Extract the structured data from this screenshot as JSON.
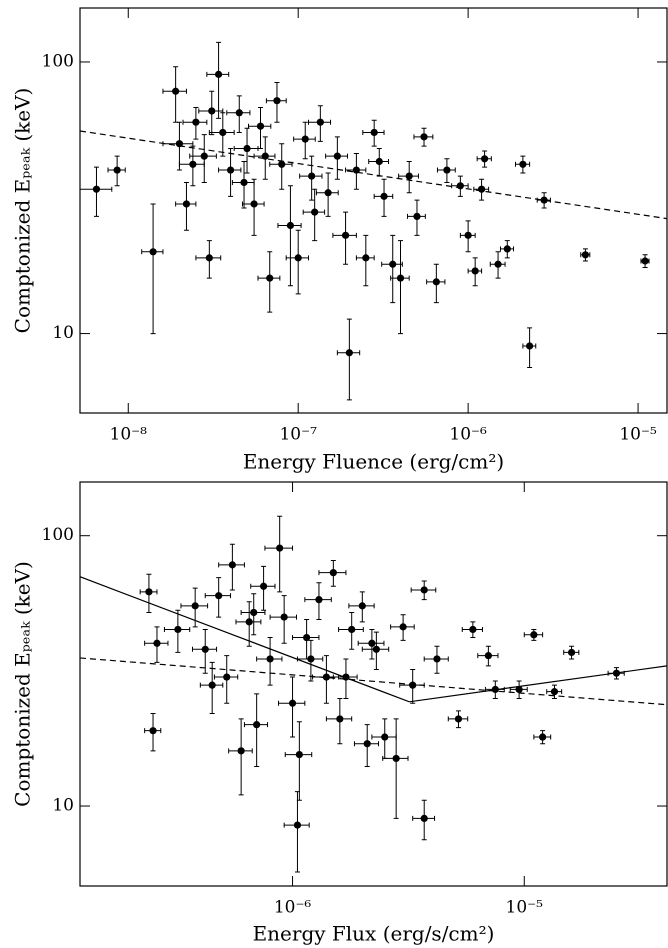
{
  "chart_data": [
    {
      "type": "scatter",
      "xlabel": "Energy Fluence (erg/cm²)",
      "ylabel": "Comptonized Eₚₑₐₖ (keV)",
      "log_x": true,
      "log_y": true,
      "color": "#000000",
      "xlim": [
        5.2e-09,
        1.48e-05
      ],
      "ylim": [
        5.1,
        158
      ],
      "xticks": [
        {
          "value": 1e-08,
          "label": "10⁻⁸"
        },
        {
          "value": 1e-07,
          "label": "10⁻⁷"
        },
        {
          "value": 1e-06,
          "label": "10⁻⁶"
        },
        {
          "value": 1e-05,
          "label": "10⁻⁵"
        }
      ],
      "yticks": [
        10,
        100
      ],
      "series": [
        {
          "x": [
            6.5e-09,
            8.6e-09,
            1.4e-08,
            1.9e-08,
            2e-08,
            2.2e-08,
            2.5e-08,
            2.8e-08,
            3e-08,
            3.4e-08,
            3.6e-08,
            4e-08,
            4.5e-08,
            5e-08,
            5.5e-08,
            6e-08,
            6.8e-08,
            7.5e-08,
            8e-08,
            9e-08,
            1e-07,
            1.1e-07,
            1.2e-07,
            1.35e-07,
            1.5e-07,
            1.7e-07,
            1.9e-07,
            2e-07,
            2.2e-07,
            2.5e-07,
            2.8e-07,
            3.2e-07,
            3.6e-07,
            4e-07,
            4.5e-07,
            5.5e-07,
            6.5e-07,
            7.5e-07,
            9e-07,
            1e-06,
            1.1e-06,
            1.25e-06,
            1.5e-06,
            1.7e-06,
            2.1e-06,
            2.3e-06,
            2.8e-06,
            4.9e-06,
            1.1e-05,
            2.4e-08,
            3.1e-08,
            4.8e-08,
            6.4e-08,
            1.25e-07,
            3e-07,
            1.2e-06,
            5e-07
          ],
          "y": [
            34,
            40,
            20,
            78,
            50,
            30,
            60,
            45,
            19,
            90,
            55,
            40,
            65,
            48,
            30,
            58,
            16,
            72,
            42,
            25,
            19,
            52,
            38,
            60,
            33,
            45,
            23,
            8.5,
            40,
            19,
            55,
            32,
            18,
            16,
            38,
            53,
            15.5,
            40,
            35,
            23,
            17,
            44,
            18,
            20.5,
            42,
            9,
            31,
            19.5,
            18.5,
            42,
            66,
            36,
            45,
            28,
            43,
            34,
            27
          ],
          "xerr": [
            1.5e-09,
            1e-09,
            2e-09,
            3e-09,
            4e-09,
            3e-09,
            4e-09,
            5e-09,
            5e-09,
            5e-09,
            6e-09,
            6e-09,
            7e-09,
            8e-09,
            8e-09,
            9e-09,
            1e-08,
            1e-08,
            1.2e-08,
            1.4e-08,
            1.5e-08,
            1.6e-08,
            1.8e-08,
            2e-08,
            2.2e-08,
            2.5e-08,
            3e-08,
            3e-08,
            3e-08,
            3e-08,
            4e-08,
            4e-08,
            5e-08,
            5e-08,
            6e-08,
            7e-08,
            8e-08,
            9e-08,
            1e-07,
            1e-07,
            1e-07,
            1.2e-07,
            1.5e-07,
            1.5e-07,
            2e-07,
            2e-07,
            2.5e-07,
            3e-07,
            6e-07,
            4e-09,
            5e-09,
            7e-09,
            9e-09,
            1.8e-08,
            4e-08,
            1.2e-07,
            6e-08
          ],
          "yerr": [
            7,
            5,
            10,
            18,
            10,
            6,
            8,
            9,
            3,
            28,
            10,
            8,
            10,
            9,
            7,
            10,
            4,
            12,
            8,
            10,
            5,
            8,
            7,
            9,
            6,
            8,
            5,
            2.8,
            6,
            4,
            6,
            5,
            5,
            6,
            5,
            4,
            2.5,
            4,
            3,
            3,
            2,
            3,
            2,
            1.5,
            3,
            1.5,
            2,
            1,
            1,
            7,
            12,
            7,
            8,
            6,
            5,
            3,
            4
          ]
        }
      ],
      "lines": [
        {
          "style": "dashed",
          "x": [
            5.2e-09,
            1.48e-05
          ],
          "y": [
            55.7,
            26.5
          ]
        }
      ]
    },
    {
      "type": "scatter",
      "xlabel": "Energy Flux (erg/s/cm²)",
      "ylabel": "Comptonized Eₚₑₐₖ (keV)",
      "log_x": true,
      "log_y": true,
      "color": "#000000",
      "xlim": [
        1.21e-07,
        4.13e-05
      ],
      "ylim": [
        5.06,
        158
      ],
      "xticks": [
        {
          "value": 1e-06,
          "label": "10⁻⁶"
        },
        {
          "value": 1e-05,
          "label": "10⁻⁵"
        }
      ],
      "yticks": [
        10,
        100
      ],
      "series": [
        {
          "x": [
            2.5e-07,
            2.4e-07,
            2.6e-07,
            3.2e-07,
            3.8e-07,
            4.2e-07,
            4.8e-07,
            5.2e-07,
            5.5e-07,
            6e-07,
            6.5e-07,
            7e-07,
            7.5e-07,
            8e-07,
            8.8e-07,
            9.2e-07,
            1e-06,
            1.05e-06,
            1.07e-06,
            1.15e-06,
            1.3e-06,
            1.4e-06,
            1.5e-06,
            1.6e-06,
            1.8e-06,
            2e-06,
            2.1e-06,
            2.3e-06,
            2.5e-06,
            2.8e-06,
            3e-06,
            3.3e-06,
            3.7e-06,
            3.7e-06,
            4.2e-06,
            5.2e-06,
            6e-06,
            7e-06,
            7.5e-06,
            9.5e-06,
            1.1e-05,
            1.2e-05,
            1.35e-05,
            1.6e-05,
            2.5e-05,
            6.8e-07,
            1.2e-06,
            1.7e-06,
            2.2e-06,
            4.5e-07
          ],
          "y": [
            19,
            62,
            40,
            45,
            55,
            38,
            60,
            30,
            78,
            16,
            48,
            20,
            65,
            35,
            90,
            50,
            24,
            8.5,
            15.5,
            42,
            58,
            30,
            73,
            21,
            45,
            55,
            17,
            38,
            18,
            15,
            46,
            28,
            63,
            9,
            35,
            21,
            45,
            36,
            27,
            27,
            43,
            18,
            26.5,
            37,
            31,
            52,
            35,
            30,
            40,
            28
          ],
          "xerr": [
            2e-08,
            2e-08,
            3e-08,
            4e-08,
            5e-08,
            5e-08,
            6e-08,
            6e-08,
            7e-08,
            7e-08,
            8e-08,
            8e-08,
            9e-08,
            1e-07,
            1.2e-07,
            1.2e-07,
            1.3e-07,
            1.3e-07,
            1.4e-07,
            1.5e-07,
            1.7e-07,
            1.8e-07,
            2e-07,
            2e-07,
            2.2e-07,
            2.5e-07,
            2.5e-07,
            3e-07,
            3e-07,
            3.5e-07,
            3.5e-07,
            4e-07,
            4.5e-07,
            4e-07,
            5e-07,
            5e-07,
            6e-07,
            7e-07,
            7e-07,
            8e-07,
            1e-06,
            1e-06,
            1e-06,
            1.2e-06,
            2e-06,
            8e-08,
            1.5e-07,
            2e-07,
            2.8e-07,
            5e-08
          ],
          "yerr": [
            3,
            10,
            6,
            8,
            9,
            7,
            10,
            6,
            15,
            5,
            9,
            6,
            12,
            7,
            28,
            10,
            6,
            2.8,
            5,
            7,
            9,
            6,
            8,
            4,
            7,
            7,
            3,
            6,
            3,
            6,
            5,
            4,
            5,
            1.5,
            4,
            1.5,
            3,
            3,
            2,
            2,
            2,
            1,
            1.5,
            2,
            1.5,
            9,
            6,
            5,
            5,
            6
          ]
        }
      ],
      "lines": [
        {
          "style": "dashed",
          "x": [
            1.21e-07,
            4.13e-05
          ],
          "y": [
            35.3,
            23.7
          ]
        },
        {
          "style": "solid",
          "x": [
            1.21e-07,
            3.19e-06,
            4.13e-05
          ],
          "y": [
            70.5,
            24.3,
            33.0
          ]
        }
      ]
    }
  ]
}
